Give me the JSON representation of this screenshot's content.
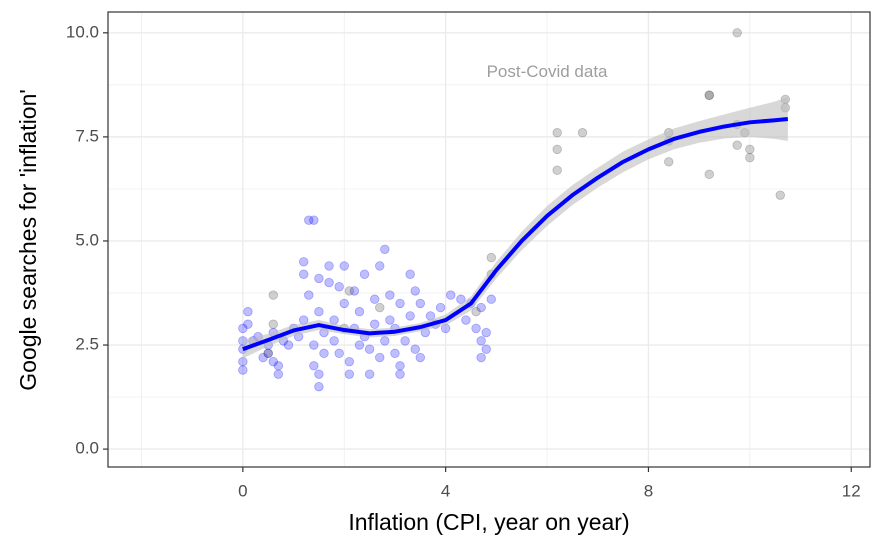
{
  "chart_data": {
    "type": "scatter",
    "xlabel": "Inflation (CPI, year on year)",
    "ylabel": "Google searches for 'inflation'",
    "annotation": {
      "text": "Post-Covid data",
      "x": 6.0,
      "y": 9.05
    },
    "xlim": [
      -2.66,
      12.37
    ],
    "ylim": [
      -0.43,
      10.5
    ],
    "xticks": [
      0,
      4,
      8,
      12
    ],
    "yticks": [
      {
        "value": 0,
        "label": "0.0"
      },
      2.5,
      {
        "value": 5,
        "label": "5.0"
      },
      7.5,
      {
        "value": 10,
        "label": "10.0"
      }
    ],
    "minor_xticks": [
      -2,
      2,
      6,
      10
    ],
    "minor_yticks": [
      1.25,
      3.75,
      6.25,
      8.75
    ],
    "grid": true,
    "series": [
      {
        "color": "#0000ff",
        "x": [
          0,
          0,
          0,
          0,
          0,
          0.1,
          0.1,
          0.2,
          0.3,
          0.4,
          0.5,
          0.5,
          0.6,
          0.6,
          0.7,
          0.7,
          0.8,
          0.9,
          1.0,
          1.1,
          1.2,
          1.2,
          1.2,
          1.3,
          1.4,
          1.3,
          1.4,
          1.4,
          1.5,
          1.5,
          1.5,
          1.5,
          1.6,
          1.6,
          1.7,
          1.7,
          1.8,
          1.8,
          1.9,
          1.9,
          2.0,
          2.0,
          2.1,
          2.1,
          2.2,
          2.2,
          2.3,
          2.3,
          2.4,
          2.4,
          2.5,
          2.5,
          2.6,
          2.6,
          2.7,
          2.7,
          2.8,
          2.8,
          2.9,
          2.9,
          3.0,
          3.0,
          3.1,
          3.1,
          3.1,
          3.2,
          3.3,
          3.3,
          3.4,
          3.4,
          3.5,
          3.5,
          3.6,
          3.7,
          3.8,
          3.9,
          4.0,
          4.1,
          4.3,
          4.4,
          4.5,
          4.6,
          4.7,
          4.7,
          4.7,
          4.8,
          4.8,
          4.9
        ],
        "values": [
          1.9,
          2.1,
          2.4,
          2.6,
          2.9,
          3.0,
          3.3,
          2.6,
          2.7,
          2.2,
          2.3,
          2.5,
          2.1,
          2.8,
          1.8,
          2.0,
          2.6,
          2.5,
          2.9,
          2.7,
          3.1,
          4.5,
          4.2,
          5.5,
          5.5,
          3.7,
          2.5,
          2.0,
          1.8,
          1.5,
          4.1,
          3.3,
          2.3,
          2.8,
          4.4,
          4.0,
          3.1,
          2.6,
          2.3,
          3.9,
          4.4,
          3.5,
          2.1,
          1.8,
          3.8,
          2.9,
          2.5,
          3.3,
          4.2,
          2.7,
          1.8,
          2.4,
          3.6,
          3.0,
          2.2,
          4.4,
          4.8,
          2.6,
          3.7,
          3.1,
          2.3,
          2.9,
          1.8,
          2.0,
          3.5,
          2.6,
          3.2,
          4.2,
          3.8,
          2.4,
          2.2,
          3.5,
          2.8,
          3.2,
          3.0,
          3.4,
          2.9,
          3.7,
          3.6,
          3.1,
          3.5,
          2.9,
          2.6,
          2.2,
          3.4,
          2.8,
          2.4,
          3.6
        ]
      },
      {
        "color": "#444444",
        "x": [
          0.5,
          0.6,
          0.6,
          2.0,
          2.1,
          2.7,
          4.6,
          4.9,
          4.9,
          6.2,
          6.2,
          6.2,
          6.7,
          8.4,
          8.4,
          8.4,
          9.2,
          9.2,
          9.2,
          9.75,
          9.75,
          9.75,
          9.9,
          10.0,
          10.0,
          10.6,
          10.7,
          10.7
        ],
        "values": [
          2.3,
          3.0,
          3.7,
          2.9,
          3.8,
          3.4,
          3.3,
          4.2,
          4.6,
          6.7,
          7.2,
          7.6,
          7.6,
          6.9,
          7.4,
          7.6,
          6.6,
          8.5,
          8.5,
          10.0,
          7.8,
          7.3,
          7.6,
          7.0,
          7.2,
          6.1,
          8.2,
          8.4
        ]
      }
    ],
    "smooth": {
      "color": "#0000ff",
      "band_color": "#bebebe",
      "x": [
        0,
        0.5,
        1,
        1.5,
        2,
        2.5,
        3,
        3.5,
        4,
        4.5,
        5,
        5.5,
        6,
        6.5,
        7,
        7.5,
        8,
        8.5,
        9,
        9.5,
        10,
        10.5,
        10.75
      ],
      "values": [
        2.4,
        2.62,
        2.85,
        2.98,
        2.86,
        2.78,
        2.82,
        2.93,
        3.1,
        3.5,
        4.3,
        5.0,
        5.6,
        6.1,
        6.52,
        6.9,
        7.2,
        7.45,
        7.62,
        7.75,
        7.85,
        7.9,
        7.93
      ],
      "lower": [
        2.18,
        2.47,
        2.72,
        2.86,
        2.76,
        2.68,
        2.72,
        2.83,
        2.97,
        3.33,
        4.1,
        4.78,
        5.36,
        5.86,
        6.28,
        6.65,
        6.96,
        7.2,
        7.36,
        7.46,
        7.5,
        7.45,
        7.4
      ],
      "upper": [
        2.62,
        2.77,
        2.98,
        3.1,
        2.96,
        2.88,
        2.92,
        3.03,
        3.23,
        3.67,
        4.5,
        5.22,
        5.84,
        6.34,
        6.76,
        7.15,
        7.44,
        7.7,
        7.88,
        8.04,
        8.2,
        8.35,
        8.46
      ]
    }
  }
}
